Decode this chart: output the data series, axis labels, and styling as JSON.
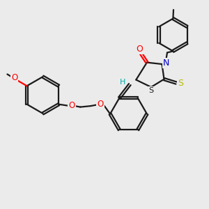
{
  "bg_color": "#ebebeb",
  "bond_color": "#1a1a1a",
  "O_color": "#ff0000",
  "N_color": "#0000cc",
  "S_color": "#b8b800",
  "H_color": "#00aaaa",
  "line_width": 1.6,
  "figsize": [
    3.0,
    3.0
  ],
  "dpi": 100,
  "xlim": [
    0,
    10
  ],
  "ylim": [
    0,
    10
  ]
}
